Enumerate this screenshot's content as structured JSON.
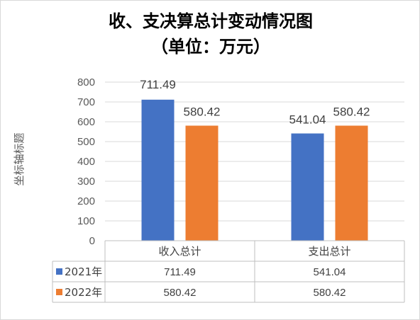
{
  "chart_data": {
    "type": "bar",
    "title": "收、支决算总计变动情况图",
    "subtitle": "（单位：万元）",
    "ylabel": "坐标轴标题",
    "categories": [
      "收入总计",
      "支出总计"
    ],
    "series": [
      {
        "name": "2021年",
        "color": "#4472c4",
        "values": [
          711.49,
          541.04
        ],
        "labels": [
          "711.49",
          "541.04"
        ]
      },
      {
        "name": "2022年",
        "color": "#ed7d31",
        "values": [
          580.42,
          580.42
        ],
        "labels": [
          "580.42",
          "580.42"
        ]
      }
    ],
    "ylim": [
      0,
      800
    ],
    "yticks": [
      0,
      100,
      200,
      300,
      400,
      500,
      600,
      700,
      800
    ],
    "grid": true,
    "legend": "data-table"
  }
}
